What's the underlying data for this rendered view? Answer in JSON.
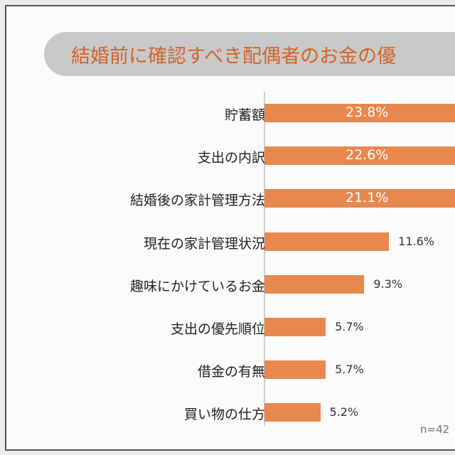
{
  "chart_data": {
    "type": "bar",
    "orientation": "horizontal",
    "title": "結婚前に確認すべき配偶者のお金の優",
    "categories": [
      "貯蓄額",
      "支出の内訳",
      "結婚後の家計管理方法",
      "現在の家計管理状況",
      "趣味にかけているお金",
      "支出の優先順位",
      "借金の有無",
      "買い物の仕方"
    ],
    "values": [
      23.8,
      22.6,
      21.1,
      11.6,
      9.3,
      5.7,
      5.7,
      5.2
    ],
    "labels": [
      "23.8%",
      "22.6%",
      "21.1%",
      "11.6%",
      "9.3%",
      "5.7%",
      "5.7%",
      "5.2%"
    ],
    "unit": "%",
    "note": "n=42",
    "colors": {
      "bar": "#e8874e",
      "title": "#d2632b",
      "title_bg": "#c9c9c9"
    },
    "grid": false
  }
}
